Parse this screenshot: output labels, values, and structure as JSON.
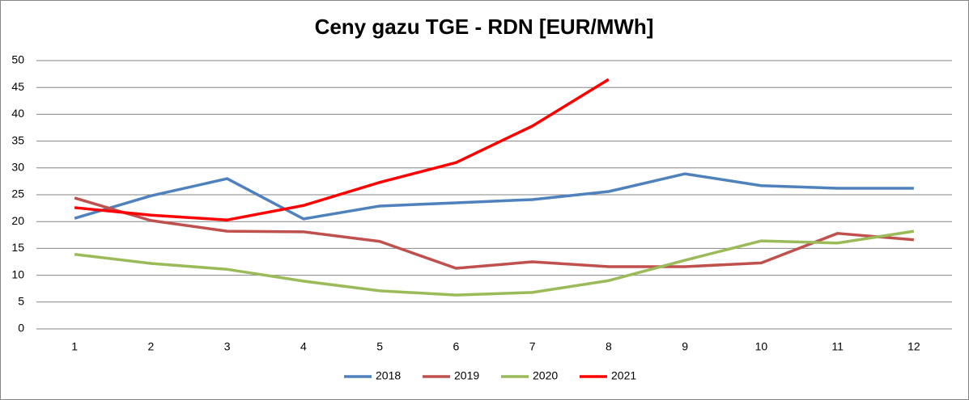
{
  "chart_data": {
    "type": "line",
    "title": "Ceny gazu TGE - RDN [EUR/MWh]",
    "categories": [
      "1",
      "2",
      "3",
      "4",
      "5",
      "6",
      "7",
      "8",
      "9",
      "10",
      "11",
      "12"
    ],
    "series": [
      {
        "name": "2018",
        "color": "#4f81bd",
        "values": [
          20.6,
          24.8,
          28.0,
          20.5,
          22.9,
          23.5,
          24.1,
          25.6,
          28.9,
          26.7,
          26.2,
          26.2
        ]
      },
      {
        "name": "2019",
        "color": "#c0504d",
        "values": [
          24.4,
          20.2,
          18.2,
          18.1,
          16.3,
          11.3,
          12.5,
          11.6,
          11.6,
          12.3,
          17.8,
          16.6
        ]
      },
      {
        "name": "2020",
        "color": "#9bbb59",
        "values": [
          13.9,
          12.2,
          11.1,
          8.9,
          7.1,
          6.3,
          6.8,
          9.0,
          12.8,
          16.4,
          16.0,
          18.2
        ]
      },
      {
        "name": "2021",
        "color": "#ff0000",
        "values": [
          22.6,
          21.2,
          20.3,
          23.0,
          27.3,
          31.0,
          37.8,
          46.5,
          null,
          null,
          null,
          null
        ]
      }
    ],
    "ylim": [
      0,
      50
    ],
    "yticks": [
      0,
      5,
      10,
      15,
      20,
      25,
      30,
      35,
      40,
      45,
      50
    ],
    "grid": true,
    "legend": "bottom"
  }
}
